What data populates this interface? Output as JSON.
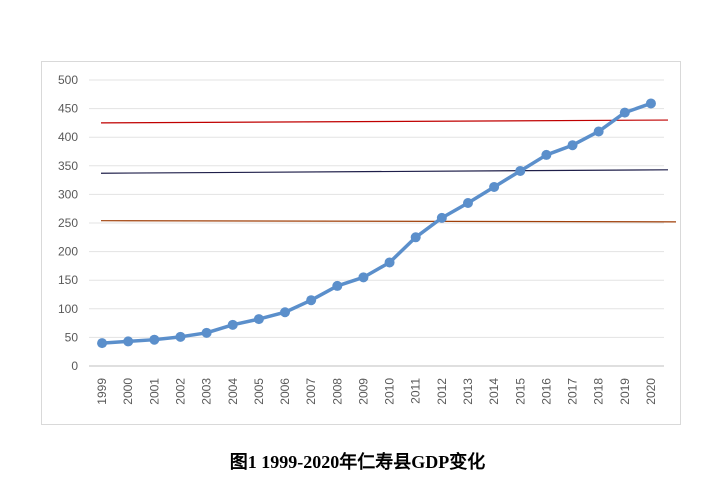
{
  "caption": "图1 1999-2020年仁寿县GDP变化",
  "chart_data": {
    "type": "line",
    "title": "",
    "xlabel": "",
    "ylabel": "",
    "categories": [
      "1999",
      "2000",
      "2001",
      "2002",
      "2003",
      "2004",
      "2005",
      "2006",
      "2007",
      "2008",
      "2009",
      "2010",
      "2011",
      "2012",
      "2013",
      "2014",
      "2015",
      "2016",
      "2017",
      "2018",
      "2019",
      "2020"
    ],
    "series": [
      {
        "values": [
          40,
          43,
          46,
          51,
          58,
          72,
          82,
          94,
          115,
          140,
          155,
          181,
          225,
          259,
          285,
          313,
          341,
          369,
          386,
          410,
          443,
          459
        ],
        "color": "#5b8fcb"
      }
    ],
    "reference_lines": [
      {
        "from": 425,
        "to": 430,
        "color": "#c00000"
      },
      {
        "from": 337,
        "to": 343,
        "color": "#1f1f4a"
      },
      {
        "from": 254,
        "to": 252,
        "color": "#a0400a"
      }
    ],
    "ylim": [
      0,
      500
    ],
    "yticks": [
      0,
      50,
      100,
      150,
      200,
      250,
      300,
      350,
      400,
      450,
      500
    ],
    "grid": true,
    "legend": "none"
  }
}
